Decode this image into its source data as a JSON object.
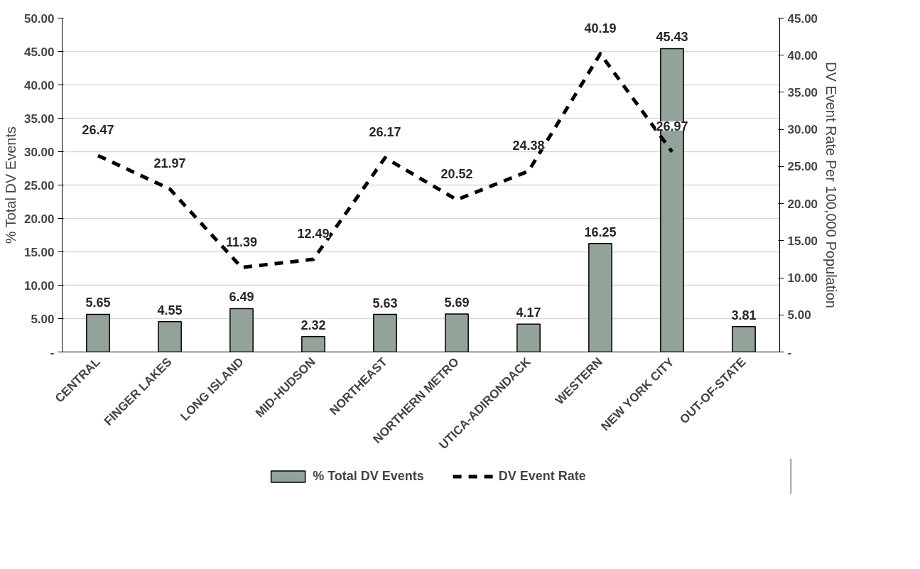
{
  "chart_data": {
    "type": "bar",
    "categories": [
      "CENTRAL",
      "FINGER LAKES",
      "LONG ISLAND",
      "MID-HUDSON",
      "NORTHEAST",
      "NORTHERN METRO",
      "UTICA-ADIRONDACK",
      "WESTERN",
      "NEW YORK CITY",
      "OUT-OF-STATE"
    ],
    "series": [
      {
        "name": "% Total DV Events",
        "color": "#93a399",
        "values": [
          5.65,
          4.55,
          6.49,
          2.32,
          5.63,
          5.69,
          4.17,
          16.25,
          45.43,
          3.81
        ]
      },
      {
        "name": "DV Event Rate",
        "type": "line",
        "axis": "y2",
        "color": "#000000",
        "line_style": "dashed",
        "values": [
          26.47,
          21.97,
          11.39,
          12.49,
          26.17,
          20.52,
          24.38,
          40.19,
          26.97,
          null
        ]
      }
    ],
    "ylabel": "% Total DV Events",
    "y2label": "DV Event Rate Per 100,000 Population",
    "ylim": [
      0,
      50
    ],
    "yticks": [
      {
        "value": 0,
        "label": "-"
      },
      {
        "value": 5,
        "label": "5.00"
      },
      {
        "value": 10,
        "label": "10.00"
      },
      {
        "value": 15,
        "label": "15.00"
      },
      {
        "value": 20,
        "label": "20.00"
      },
      {
        "value": 25,
        "label": "25.00"
      },
      {
        "value": 30,
        "label": "30.00"
      },
      {
        "value": 35,
        "label": "35.00"
      },
      {
        "value": 40,
        "label": "40.00"
      },
      {
        "value": 45,
        "label": "45.00"
      },
      {
        "value": 50,
        "label": "50.00"
      }
    ],
    "y2lim": [
      0,
      45
    ],
    "y2ticks": [
      {
        "value": 0,
        "label": "-"
      },
      {
        "value": 5,
        "label": "5.00"
      },
      {
        "value": 10,
        "label": "10.00"
      },
      {
        "value": 15,
        "label": "15.00"
      },
      {
        "value": 20,
        "label": "20.00"
      },
      {
        "value": 25,
        "label": "25.00"
      },
      {
        "value": 30,
        "label": "30.00"
      },
      {
        "value": 35,
        "label": "35.00"
      },
      {
        "value": 40,
        "label": "40.00"
      },
      {
        "value": 45,
        "label": "45.00"
      }
    ],
    "data_labels": true,
    "grid": "y",
    "legend": "bottom",
    "marker": "none"
  }
}
